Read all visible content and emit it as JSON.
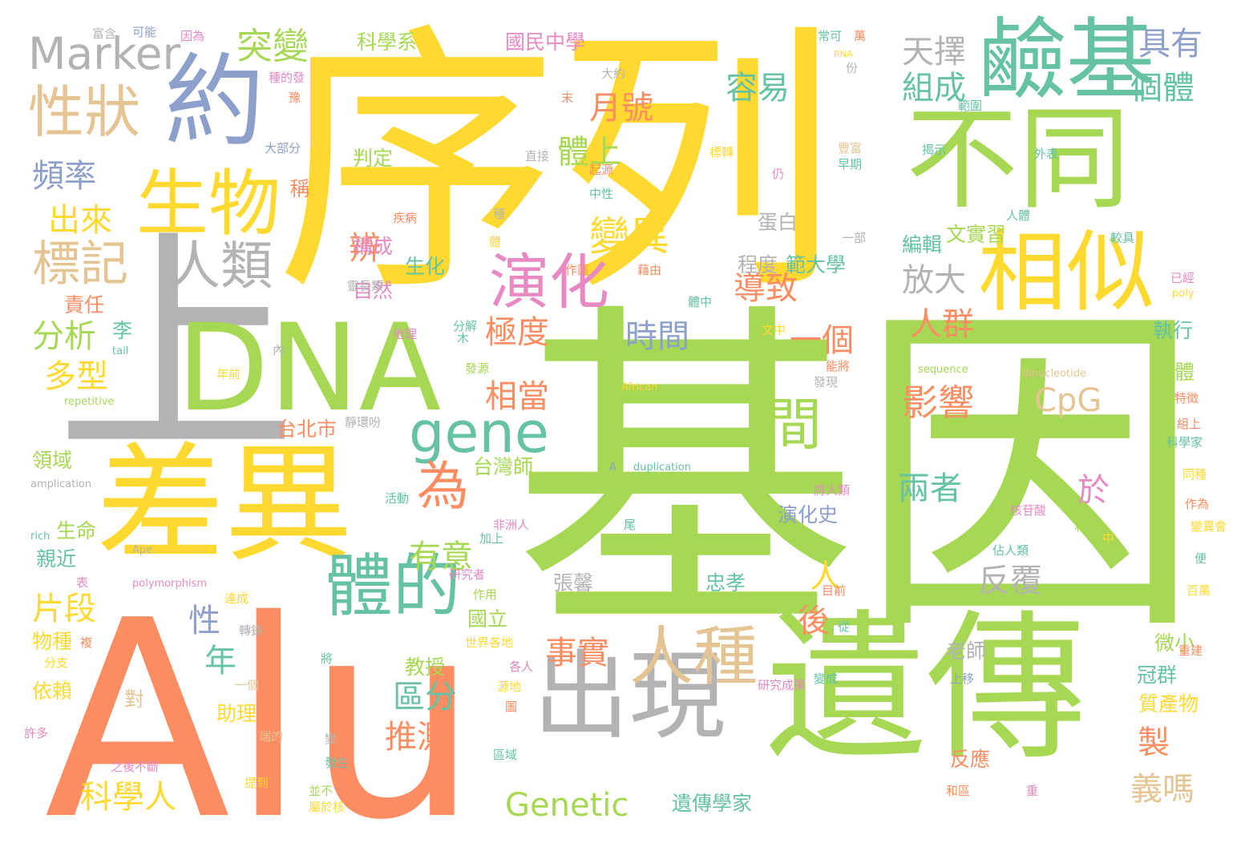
{
  "palette": {
    "yellow": "#ffd92f",
    "green": "#a6d854",
    "orange": "#fc8d62",
    "gray": "#b3b3b3",
    "blue": "#8da0cb",
    "teal": "#66c2a5",
    "pink": "#e78ac3",
    "tan": "#e5c494"
  },
  "words": [
    {
      "text": "基因",
      "color": "green"
    },
    {
      "text": "序列",
      "color": "yellow"
    },
    {
      "text": "Alu",
      "color": "orange"
    },
    {
      "text": "上",
      "color": "gray"
    },
    {
      "text": "DNA",
      "color": "green"
    },
    {
      "text": "遺傳",
      "color": "green"
    },
    {
      "text": "差異",
      "color": "yellow"
    },
    {
      "text": "出現",
      "color": "gray"
    },
    {
      "text": "不同",
      "color": "green"
    },
    {
      "text": "鹼基",
      "color": "teal"
    },
    {
      "text": "約",
      "color": "blue"
    },
    {
      "text": "相似",
      "color": "yellow"
    },
    {
      "text": "生物",
      "color": "yellow"
    },
    {
      "text": "體的",
      "color": "teal"
    },
    {
      "text": "gene",
      "color": "teal"
    },
    {
      "text": "間",
      "color": "green"
    },
    {
      "text": "人種",
      "color": "tan"
    },
    {
      "text": "性狀",
      "color": "tan"
    },
    {
      "text": "演化",
      "color": "pink"
    },
    {
      "text": "人類",
      "color": "gray"
    },
    {
      "text": "為",
      "color": "orange"
    },
    {
      "text": "Marker",
      "color": "gray"
    },
    {
      "text": "標記",
      "color": "tan"
    },
    {
      "text": "突變",
      "color": "green"
    },
    {
      "text": "變異",
      "color": "yellow"
    },
    {
      "text": "影響",
      "color": "orange"
    },
    {
      "text": "CpG",
      "color": "tan"
    },
    {
      "text": "Genetic",
      "color": "green"
    },
    {
      "text": "天擇",
      "color": "gray"
    },
    {
      "text": "具有",
      "color": "blue"
    },
    {
      "text": "組成",
      "color": "teal"
    },
    {
      "text": "個體",
      "color": "teal"
    },
    {
      "text": "容易",
      "color": "teal"
    },
    {
      "text": "月號",
      "color": "orange"
    },
    {
      "text": "體上",
      "color": "green"
    },
    {
      "text": "頻率",
      "color": "blue"
    },
    {
      "text": "出來",
      "color": "yellow"
    },
    {
      "text": "分析",
      "color": "green"
    },
    {
      "text": "多型",
      "color": "yellow"
    },
    {
      "text": "片段",
      "color": "yellow"
    },
    {
      "text": "導致",
      "color": "orange"
    },
    {
      "text": "放大",
      "color": "gray"
    },
    {
      "text": "一個",
      "color": "orange"
    },
    {
      "text": "時間",
      "color": "blue"
    },
    {
      "text": "極度",
      "color": "orange"
    },
    {
      "text": "辨",
      "color": "orange"
    },
    {
      "text": "人群",
      "color": "orange"
    },
    {
      "text": "反覆",
      "color": "gray"
    },
    {
      "text": "有意",
      "color": "green"
    },
    {
      "text": "事實",
      "color": "orange"
    },
    {
      "text": "兩者",
      "color": "teal"
    },
    {
      "text": "推測",
      "color": "orange"
    },
    {
      "text": "區分",
      "color": "teal"
    },
    {
      "text": "科學人",
      "color": "yellow"
    },
    {
      "text": "義嗎",
      "color": "tan"
    },
    {
      "text": "製",
      "color": "orange"
    },
    {
      "text": "年",
      "color": "teal"
    },
    {
      "text": "性",
      "color": "blue"
    },
    {
      "text": "後",
      "color": "orange"
    },
    {
      "text": "人",
      "color": "yellow"
    },
    {
      "text": "於",
      "color": "pink"
    },
    {
      "text": "相當",
      "color": "orange"
    },
    {
      "text": "國立",
      "color": "green"
    },
    {
      "text": "教授",
      "color": "green"
    },
    {
      "text": "演化史",
      "color": "blue"
    },
    {
      "text": "老師",
      "color": "gray"
    },
    {
      "text": "忠孝",
      "color": "teal"
    },
    {
      "text": "張馨",
      "color": "gray"
    },
    {
      "text": "冠群",
      "color": "teal"
    },
    {
      "text": "生命",
      "color": "green"
    },
    {
      "text": "親近",
      "color": "teal"
    },
    {
      "text": "領域",
      "color": "green"
    },
    {
      "text": "依賴",
      "color": "yellow"
    },
    {
      "text": "物種",
      "color": "yellow"
    },
    {
      "text": "助理",
      "color": "yellow"
    },
    {
      "text": "對",
      "color": "tan"
    },
    {
      "text": "國民中學",
      "color": "pink"
    },
    {
      "text": "科學系",
      "color": "green"
    },
    {
      "text": "台北市",
      "color": "orange"
    },
    {
      "text": "台灣師",
      "color": "green"
    },
    {
      "text": "文實習",
      "color": "green"
    },
    {
      "text": "範大學",
      "color": "teal"
    },
    {
      "text": "編輯",
      "color": "teal"
    },
    {
      "text": "遺傳學家",
      "color": "teal"
    },
    {
      "text": "判定",
      "color": "green"
    },
    {
      "text": "程度",
      "color": "gray"
    },
    {
      "text": "蛋白",
      "color": "gray"
    },
    {
      "text": "自然",
      "color": "pink"
    },
    {
      "text": "李",
      "color": "teal"
    },
    {
      "text": "責任",
      "color": "orange"
    },
    {
      "text": "身體",
      "color": "green"
    },
    {
      "text": "執行",
      "color": "teal"
    },
    {
      "text": "微小",
      "color": "green"
    },
    {
      "text": "質產物",
      "color": "yellow"
    },
    {
      "text": "反應",
      "color": "orange"
    },
    {
      "text": "生化",
      "color": "teal"
    },
    {
      "text": "構成",
      "color": "pink"
    },
    {
      "text": "稱",
      "color": "orange"
    },
    {
      "text": "富含",
      "color": "gray"
    },
    {
      "text": "可能",
      "color": "blue"
    },
    {
      "text": "因為",
      "color": "pink"
    },
    {
      "text": "常可",
      "color": "teal"
    },
    {
      "text": "萬",
      "color": "orange"
    },
    {
      "text": "RNA",
      "color": "yellow"
    },
    {
      "text": "份",
      "color": "gray"
    },
    {
      "text": "大約",
      "color": "gray"
    },
    {
      "text": "末",
      "color": "orange"
    },
    {
      "text": "範圍",
      "color": "teal"
    },
    {
      "text": "種的發",
      "color": "pink"
    },
    {
      "text": "豫",
      "color": "orange"
    },
    {
      "text": "大部分",
      "color": "blue"
    },
    {
      "text": "直接",
      "color": "gray"
    },
    {
      "text": "標轉",
      "color": "yellow"
    },
    {
      "text": "起源",
      "color": "orange"
    },
    {
      "text": "中性",
      "color": "teal"
    },
    {
      "text": "豐富",
      "color": "tan"
    },
    {
      "text": "早期",
      "color": "teal"
    },
    {
      "text": "揭示",
      "color": "teal"
    },
    {
      "text": "外表",
      "color": "teal"
    },
    {
      "text": "仍",
      "color": "pink"
    },
    {
      "text": "疾病",
      "color": "orange"
    },
    {
      "text": "種",
      "color": "gray"
    },
    {
      "text": "人體",
      "color": "teal"
    },
    {
      "text": "一部",
      "color": "gray"
    },
    {
      "text": "較具",
      "color": "teal"
    },
    {
      "text": "體",
      "color": "yellow"
    },
    {
      "text": "作區",
      "color": "orange"
    },
    {
      "text": "藉由",
      "color": "orange"
    },
    {
      "text": "已經",
      "color": "pink"
    },
    {
      "text": "poly",
      "color": "yellow"
    },
    {
      "text": "靈長類",
      "color": "gray"
    },
    {
      "text": "體中",
      "color": "teal"
    },
    {
      "text": "地理",
      "color": "pink"
    },
    {
      "text": "分解",
      "color": "teal"
    },
    {
      "text": "木",
      "color": "teal"
    },
    {
      "text": "文中",
      "color": "yellow"
    },
    {
      "text": "內",
      "color": "gray"
    },
    {
      "text": "tail",
      "color": "teal"
    },
    {
      "text": "年前",
      "color": "yellow"
    },
    {
      "text": "發源",
      "color": "green"
    },
    {
      "text": "能將",
      "color": "orange"
    },
    {
      "text": "發現",
      "color": "gray"
    },
    {
      "text": "sequence",
      "color": "green"
    },
    {
      "text": "dinucleotide",
      "color": "tan"
    },
    {
      "text": "African",
      "color": "yellow"
    },
    {
      "text": "repetitive",
      "color": "green"
    },
    {
      "text": "靜環吩",
      "color": "gray"
    },
    {
      "text": "特徵",
      "color": "orange"
    },
    {
      "text": "組上",
      "color": "orange"
    },
    {
      "text": "科學家",
      "color": "teal"
    },
    {
      "text": "同種",
      "color": "yellow"
    },
    {
      "text": "amplication",
      "color": "gray"
    },
    {
      "text": "A",
      "color": "blue"
    },
    {
      "text": "duplication",
      "color": "teal"
    },
    {
      "text": "活動",
      "color": "teal"
    },
    {
      "text": "將人類",
      "color": "pink"
    },
    {
      "text": "核苷酸",
      "color": "pink"
    },
    {
      "text": "作為",
      "color": "orange"
    },
    {
      "text": "rich",
      "color": "teal"
    },
    {
      "text": "非洲人",
      "color": "pink"
    },
    {
      "text": "加上",
      "color": "teal"
    },
    {
      "text": "尾",
      "color": "teal"
    },
    {
      "text": "利用",
      "color": "green"
    },
    {
      "text": "中",
      "color": "yellow"
    },
    {
      "text": "變異會",
      "color": "yellow"
    },
    {
      "text": "Ape",
      "color": "gray"
    },
    {
      "text": "佔人類",
      "color": "teal"
    },
    {
      "text": "便",
      "color": "teal"
    },
    {
      "text": "表",
      "color": "pink"
    },
    {
      "text": "polymorphism",
      "color": "pink"
    },
    {
      "text": "研究者",
      "color": "pink"
    },
    {
      "text": "作用",
      "color": "green"
    },
    {
      "text": "目前",
      "color": "orange"
    },
    {
      "text": "百萬",
      "color": "yellow"
    },
    {
      "text": "達成",
      "color": "yellow"
    },
    {
      "text": "轉錄",
      "color": "gray"
    },
    {
      "text": "從",
      "color": "teal"
    },
    {
      "text": "複",
      "color": "orange"
    },
    {
      "text": "世界各地",
      "color": "yellow"
    },
    {
      "text": "重建",
      "color": "orange"
    },
    {
      "text": "分支",
      "color": "yellow"
    },
    {
      "text": "將",
      "color": "teal"
    },
    {
      "text": "一個",
      "color": "tan"
    },
    {
      "text": "各人",
      "color": "pink"
    },
    {
      "text": "源地",
      "color": "yellow"
    },
    {
      "text": "變成",
      "color": "teal"
    },
    {
      "text": "圖",
      "color": "orange"
    },
    {
      "text": "研究成果",
      "color": "pink"
    },
    {
      "text": "上移",
      "color": "blue"
    },
    {
      "text": "許多",
      "color": "pink"
    },
    {
      "text": "端的",
      "color": "tan"
    },
    {
      "text": "變",
      "color": "gray"
    },
    {
      "text": "發生",
      "color": "teal"
    },
    {
      "text": "區域",
      "color": "teal"
    },
    {
      "text": "之後不斷",
      "color": "pink"
    },
    {
      "text": "提到",
      "color": "yellow"
    },
    {
      "text": "並不",
      "color": "green"
    },
    {
      "text": "屬於核",
      "color": "yellow"
    },
    {
      "text": "和區",
      "color": "orange"
    },
    {
      "text": "重",
      "color": "pink"
    }
  ]
}
